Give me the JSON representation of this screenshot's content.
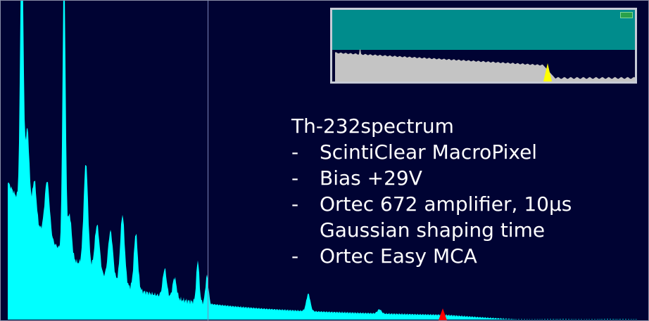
{
  "colors": {
    "background": "#000333",
    "spectrum_fill": "#00FFFF",
    "marker": "#FF0000",
    "inset_band": "#008C8C",
    "inset_fill": "#C4C4C4",
    "inset_marker": "#FFFF00",
    "text": "#FFFFFF"
  },
  "caption": {
    "title": "Th-232spectrum",
    "bullets": [
      {
        "dash": "-",
        "text": "ScintiClear MacroPixel"
      },
      {
        "dash": "-",
        "text": "Bias +29V"
      },
      {
        "dash": "-",
        "text": "Ortec 672 amplifier, 10μs",
        "continuation": "Gaussian shaping time"
      },
      {
        "dash": "-",
        "text": "Ortec Easy MCA"
      }
    ]
  },
  "icons": {
    "marker": "red-triangle-marker-icon",
    "inset_marker": "yellow-triangle-marker-icon",
    "inset_badge": "green-status-badge-icon"
  }
}
